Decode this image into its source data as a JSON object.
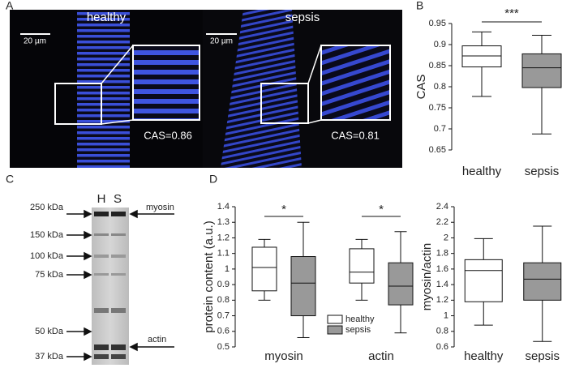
{
  "panel_labels": [
    "A",
    "B",
    "C",
    "D"
  ],
  "images": [
    {
      "title": "healthy",
      "scale_bar": "20 µm",
      "cas": "CAS=0.86"
    },
    {
      "title": "sepsis",
      "scale_bar": "20 µm",
      "cas": "CAS=0.81"
    }
  ],
  "gel": {
    "lanes": [
      "H",
      "S"
    ],
    "markers": [
      "250 kDa",
      "150 kDa",
      "100 kDa",
      "75 kDa",
      "50 kDa",
      "37 kDa"
    ],
    "bands": [
      "myosin",
      "actin"
    ]
  },
  "chart_data": [
    {
      "type": "box",
      "ylabel": "CAS",
      "categories": [
        "healthy",
        "sepsis"
      ],
      "colors": [
        "#ffffff",
        "#999999"
      ],
      "stats": [
        {
          "min": 0.777,
          "q1": 0.847,
          "median": 0.873,
          "q3": 0.897,
          "max": 0.93
        },
        {
          "min": 0.688,
          "q1": 0.798,
          "median": 0.845,
          "q3": 0.878,
          "max": 0.922
        }
      ],
      "ylim": [
        0.65,
        0.95
      ],
      "yticks": [
        0.65,
        0.7,
        0.75,
        0.8,
        0.85,
        0.9,
        0.95
      ],
      "annotations": [
        "***"
      ]
    },
    {
      "type": "box",
      "ylabel": "protein content (a.u.)",
      "categories": [
        "myosin",
        "actin"
      ],
      "legend": "lower right",
      "series": [
        {
          "name": "healthy",
          "color": "#ffffff",
          "stats": [
            {
              "min": 0.8,
              "q1": 0.86,
              "median": 1.01,
              "q3": 1.14,
              "max": 1.19
            },
            {
              "min": 0.8,
              "q1": 0.91,
              "median": 0.98,
              "q3": 1.13,
              "max": 1.19
            }
          ]
        },
        {
          "name": "sepsis",
          "color": "#999999",
          "stats": [
            {
              "min": 0.56,
              "q1": 0.7,
              "median": 0.91,
              "q3": 1.08,
              "max": 1.3
            },
            {
              "min": 0.59,
              "q1": 0.77,
              "median": 0.89,
              "q3": 1.04,
              "max": 1.24
            }
          ]
        }
      ],
      "ylim": [
        0.5,
        1.4
      ],
      "yticks": [
        0.5,
        0.6,
        0.7,
        0.8,
        0.9,
        1,
        1.1,
        1.2,
        1.3,
        1.4
      ],
      "annotations": [
        "*",
        "*"
      ]
    },
    {
      "type": "box",
      "ylabel": "myosin/actin",
      "categories": [
        "healthy",
        "sepsis"
      ],
      "colors": [
        "#ffffff",
        "#999999"
      ],
      "stats": [
        {
          "min": 0.88,
          "q1": 1.18,
          "median": 1.58,
          "q3": 1.72,
          "max": 1.99
        },
        {
          "min": 0.67,
          "q1": 1.2,
          "median": 1.47,
          "q3": 1.68,
          "max": 2.15
        }
      ],
      "ylim": [
        0.6,
        2.4
      ],
      "yticks": [
        0.6,
        0.8,
        1,
        1.2,
        1.4,
        1.6,
        1.8,
        2,
        2.2,
        2.4
      ]
    }
  ]
}
